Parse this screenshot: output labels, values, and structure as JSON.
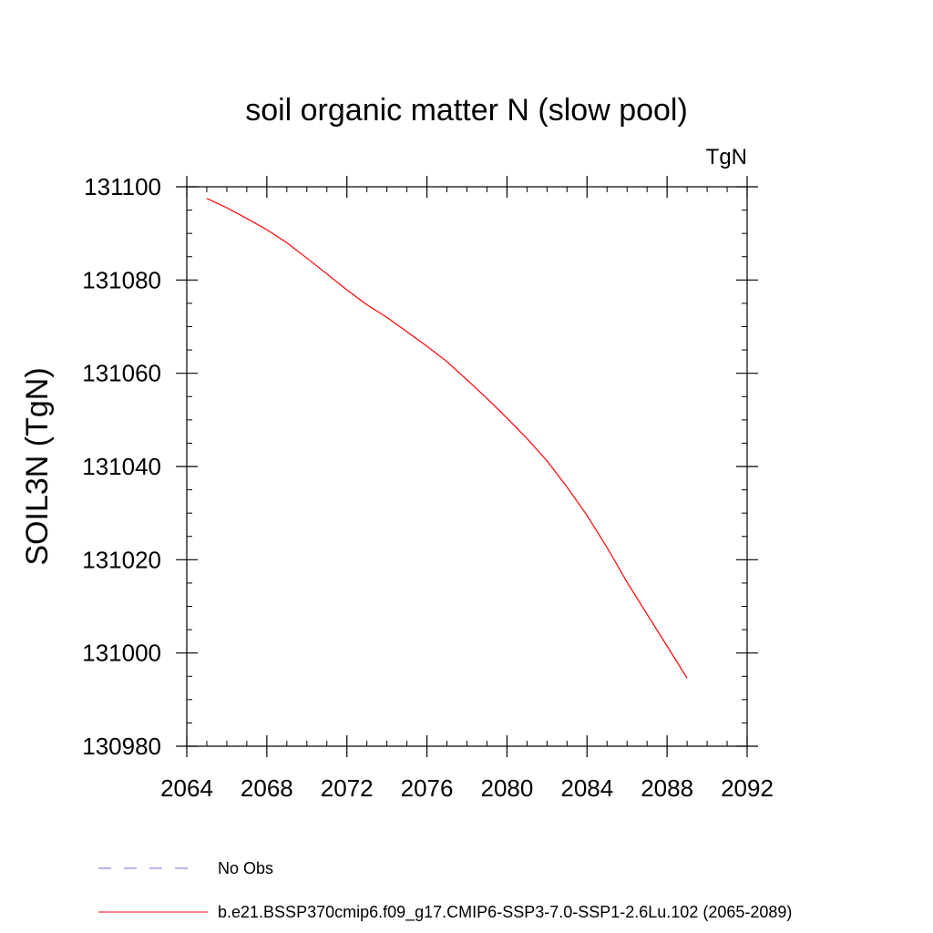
{
  "chart_data": {
    "type": "line",
    "title": "soil organic matter N (slow pool)",
    "units_label": "TgN",
    "ylabel": "SOIL3N  (TgN)",
    "xlabel": "",
    "xlim": [
      2064,
      2092
    ],
    "ylim": [
      130980,
      131100
    ],
    "x_ticks": [
      2064,
      2068,
      2072,
      2076,
      2080,
      2084,
      2088,
      2092
    ],
    "x_tick_labels": [
      "2064",
      "2068",
      "2072",
      "2076",
      "2080",
      "2084",
      "2088",
      "2092"
    ],
    "x_minor_step": 1,
    "y_ticks": [
      130980,
      131000,
      131020,
      131040,
      131060,
      131080,
      131100
    ],
    "y_tick_labels": [
      "130980",
      "131000",
      "131020",
      "131040",
      "131060",
      "131080",
      "131100"
    ],
    "y_minor_step": 5,
    "grid": false,
    "legend_position": "bottom",
    "legend": [
      {
        "label": "No Obs",
        "color": "#7b68ee",
        "style": "dashed"
      },
      {
        "label": "b.e21.BSSP370cmip6.f09_g17.CMIP6-SSP3-7.0-SSP1-2.6Lu.102 (2065-2089)",
        "color": "#ff0000",
        "style": "solid"
      }
    ],
    "series": [
      {
        "color": "#ff0000",
        "x": [
          2065,
          2066,
          2067,
          2068,
          2069,
          2070,
          2071,
          2072,
          2073,
          2074,
          2075,
          2076,
          2077,
          2078,
          2079,
          2080,
          2081,
          2082,
          2083,
          2084,
          2085,
          2086,
          2087,
          2088,
          2089
        ],
        "y": [
          131097.5,
          131095.5,
          131093.2,
          131090.8,
          131088.0,
          131084.7,
          131081.3,
          131077.9,
          131074.7,
          131072.0,
          131068.9,
          131065.8,
          131062.5,
          131058.6,
          131054.6,
          131050.4,
          131046.0,
          131041.2,
          131035.6,
          131029.5,
          131022.6,
          131015.2,
          131008.3,
          131001.5,
          130994.6
        ]
      }
    ]
  }
}
